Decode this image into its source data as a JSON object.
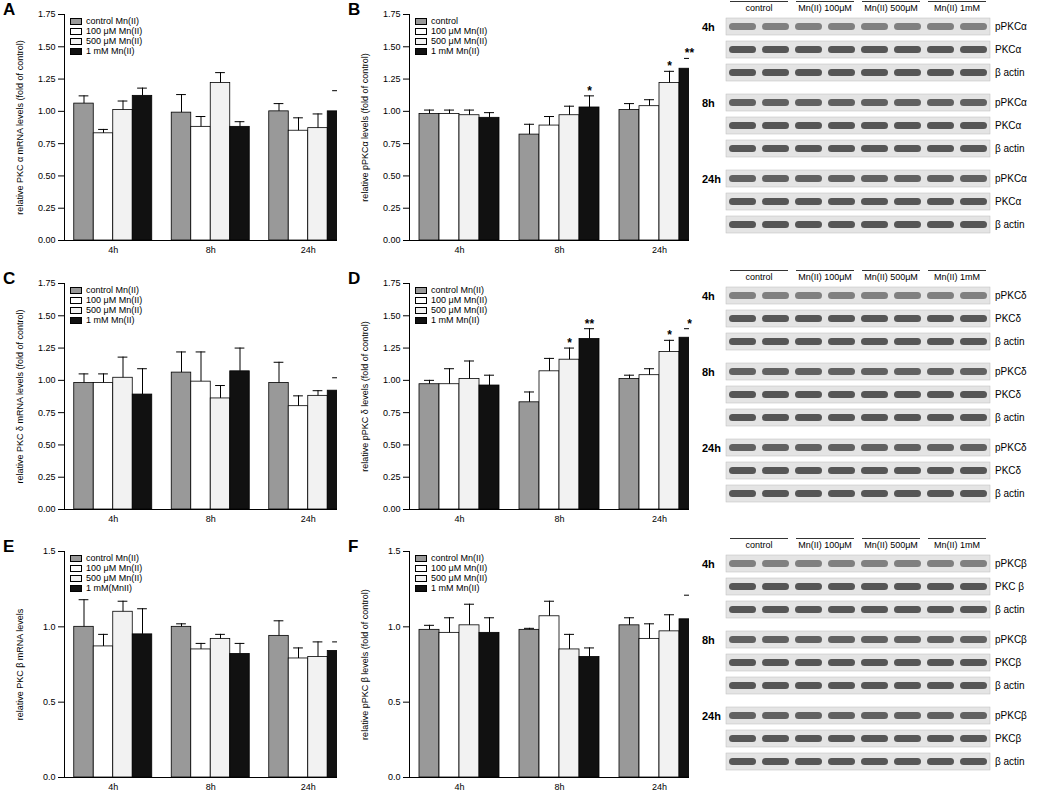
{
  "chart_data": [
    {
      "type": "bar",
      "title": "A",
      "ylabel": "relative PKC α mRNA levels (fold of control)",
      "categories": [
        "4h",
        "8h",
        "24h"
      ],
      "ylim": [
        0,
        1.75
      ],
      "yticks": [
        {
          "value": 0,
          "label": "0.00"
        },
        {
          "value": 0.25,
          "label": "0.25"
        },
        {
          "value": 0.5,
          "label": "0.50"
        },
        {
          "value": 0.75,
          "label": "0.75"
        },
        {
          "value": 1,
          "label": "1.00"
        },
        {
          "value": 1.25,
          "label": "1.25"
        },
        {
          "value": 1.5,
          "label": "1.50"
        },
        {
          "value": 1.75,
          "label": "1.75"
        }
      ],
      "legend": "upper left",
      "series": [
        {
          "name": "control Mn(II)",
          "color": "#999999",
          "values": [
            1.06,
            0.99,
            1.0
          ],
          "errors": [
            0.06,
            0.14,
            0.06
          ]
        },
        {
          "name": "100 μM Mn(II)",
          "color": "#ffffff",
          "values": [
            0.83,
            0.88,
            0.85
          ],
          "errors": [
            0.03,
            0.08,
            0.1
          ]
        },
        {
          "name": "500 μM Mn(II)",
          "color": "#f2f2f2",
          "values": [
            1.01,
            1.22,
            0.87
          ],
          "errors": [
            0.07,
            0.08,
            0.11
          ]
        },
        {
          "name": "1 mM Mn(II)",
          "color": "#111111",
          "values": [
            1.12,
            0.88,
            1.0
          ],
          "errors": [
            0.06,
            0.04,
            0.16
          ]
        }
      ]
    },
    {
      "type": "bar",
      "title": "B",
      "ylabel": "relative pPKCα levels (fold of control)",
      "categories": [
        "4h",
        "8h",
        "24h"
      ],
      "ylim": [
        0,
        1.75
      ],
      "yticks": [
        {
          "value": 0,
          "label": "0.00"
        },
        {
          "value": 0.25,
          "label": "0.25"
        },
        {
          "value": 0.5,
          "label": "0.50"
        },
        {
          "value": 0.75,
          "label": "0.75"
        },
        {
          "value": 1,
          "label": "1.00"
        },
        {
          "value": 1.25,
          "label": "1.25"
        },
        {
          "value": 1.5,
          "label": "1.50"
        },
        {
          "value": 1.75,
          "label": "1.75"
        }
      ],
      "legend": "upper left",
      "series": [
        {
          "name": "control",
          "color": "#999999",
          "values": [
            0.98,
            0.82,
            1.01
          ],
          "errors": [
            0.03,
            0.08,
            0.05
          ]
        },
        {
          "name": "100 μM Mn(II)",
          "color": "#ffffff",
          "values": [
            0.98,
            0.89,
            1.04
          ],
          "errors": [
            0.03,
            0.07,
            0.05
          ]
        },
        {
          "name": "500 μM Mn(II)",
          "color": "#f2f2f2",
          "values": [
            0.97,
            0.97,
            1.22
          ],
          "errors": [
            0.04,
            0.07,
            0.09
          ],
          "significance": [
            null,
            null,
            "*"
          ]
        },
        {
          "name": "1 mM Mn(II)",
          "color": "#111111",
          "values": [
            0.95,
            1.03,
            1.33
          ],
          "errors": [
            0.04,
            0.09,
            0.08
          ],
          "significance": [
            null,
            "*",
            "**"
          ]
        }
      ],
      "blot": {
        "header": [
          "control",
          "Mn(II) 100μM",
          "Mn(II) 500μM",
          "Mn(II) 1mM"
        ],
        "groups": [
          {
            "time": "4h",
            "rows": [
              "pPKCα",
              "PKCα",
              "β actin"
            ]
          },
          {
            "time": "8h",
            "rows": [
              "pPKCα",
              "PKCα",
              "β actin"
            ]
          },
          {
            "time": "24h",
            "rows": [
              "pPKCα",
              "PKCα",
              "β actin"
            ]
          }
        ]
      }
    },
    {
      "type": "bar",
      "title": "C",
      "ylabel": "relative PKC δ mRNA levels (fold of control)",
      "categories": [
        "4h",
        "8h",
        "24h"
      ],
      "ylim": [
        0,
        1.75
      ],
      "yticks": [
        {
          "value": 0,
          "label": "0.00"
        },
        {
          "value": 0.25,
          "label": "0.25"
        },
        {
          "value": 0.5,
          "label": "0.50"
        },
        {
          "value": 0.75,
          "label": "0.75"
        },
        {
          "value": 1,
          "label": "1.00"
        },
        {
          "value": 1.25,
          "label": "1.25"
        },
        {
          "value": 1.5,
          "label": "1.50"
        },
        {
          "value": 1.75,
          "label": "1.75"
        }
      ],
      "legend": "upper left",
      "series": [
        {
          "name": "control Mn(II)",
          "color": "#999999",
          "values": [
            0.98,
            1.06,
            0.98
          ],
          "errors": [
            0.07,
            0.16,
            0.16
          ]
        },
        {
          "name": "100 μM Mn(II)",
          "color": "#ffffff",
          "values": [
            0.98,
            0.99,
            0.8
          ],
          "errors": [
            0.07,
            0.23,
            0.08
          ]
        },
        {
          "name": "500 μM Mn(II)",
          "color": "#f2f2f2",
          "values": [
            1.02,
            0.86,
            0.88
          ],
          "errors": [
            0.16,
            0.1,
            0.04
          ]
        },
        {
          "name": "1 mM Mn(II)",
          "color": "#111111",
          "values": [
            0.89,
            1.07,
            0.92
          ],
          "errors": [
            0.2,
            0.18,
            0.1
          ]
        }
      ]
    },
    {
      "type": "bar",
      "title": "D",
      "ylabel": "relative pPKC δ levels (fold of control)",
      "categories": [
        "4h",
        "8h",
        "24h"
      ],
      "ylim": [
        0,
        1.75
      ],
      "yticks": [
        {
          "value": 0,
          "label": "0.00"
        },
        {
          "value": 0.25,
          "label": "0.25"
        },
        {
          "value": 0.5,
          "label": "0.50"
        },
        {
          "value": 0.75,
          "label": "0.75"
        },
        {
          "value": 1,
          "label": "1.00"
        },
        {
          "value": 1.25,
          "label": "1.25"
        },
        {
          "value": 1.5,
          "label": "1.50"
        },
        {
          "value": 1.75,
          "label": "1.75"
        }
      ],
      "legend": "upper left",
      "series": [
        {
          "name": "control Mn(II)",
          "color": "#999999",
          "values": [
            0.97,
            0.83,
            1.01
          ],
          "errors": [
            0.03,
            0.08,
            0.03
          ]
        },
        {
          "name": "100 μM Mn(II)",
          "color": "#ffffff",
          "values": [
            0.97,
            1.07,
            1.04
          ],
          "errors": [
            0.12,
            0.1,
            0.05
          ]
        },
        {
          "name": "500 μM Mn(II)",
          "color": "#f2f2f2",
          "values": [
            1.01,
            1.16,
            1.22
          ],
          "errors": [
            0.14,
            0.09,
            0.09
          ],
          "significance": [
            null,
            "*",
            "*"
          ]
        },
        {
          "name": "1 mM Mn(II)",
          "color": "#111111",
          "values": [
            0.96,
            1.32,
            1.33
          ],
          "errors": [
            0.08,
            0.08,
            0.07
          ],
          "significance": [
            null,
            "**",
            "*"
          ]
        }
      ],
      "blot": {
        "header": [
          "control",
          "Mn(II) 100μM",
          "Mn(II) 500μM",
          "Mn(II) 1mM"
        ],
        "groups": [
          {
            "time": "4h",
            "rows": [
              "pPKCδ",
              "PKCδ",
              "β actin"
            ]
          },
          {
            "time": "8h",
            "rows": [
              "pPKCδ",
              "PKCδ",
              "β actin"
            ]
          },
          {
            "time": "24h",
            "rows": [
              "pPKCδ",
              "PKCδ",
              "β actin"
            ]
          }
        ]
      }
    },
    {
      "type": "bar",
      "title": "E",
      "ylabel": "relative PKC β mRNA levels",
      "categories": [
        "4h",
        "8h",
        "24h"
      ],
      "ylim": [
        0,
        1.5
      ],
      "yticks": [
        {
          "value": 0,
          "label": "0.0"
        },
        {
          "value": 0.5,
          "label": "0.5"
        },
        {
          "value": 1,
          "label": "1.0"
        },
        {
          "value": 1.5,
          "label": "1.5"
        }
      ],
      "legend": "upper left",
      "series": [
        {
          "name": "control Mn(II)",
          "color": "#999999",
          "values": [
            1.0,
            1.0,
            0.94
          ],
          "errors": [
            0.18,
            0.02,
            0.1
          ]
        },
        {
          "name": "100 μM Mn(II)",
          "color": "#ffffff",
          "values": [
            0.87,
            0.85,
            0.79
          ],
          "errors": [
            0.08,
            0.04,
            0.07
          ]
        },
        {
          "name": "500 μM Mn(II)",
          "color": "#f2f2f2",
          "values": [
            1.1,
            0.92,
            0.8
          ],
          "errors": [
            0.07,
            0.03,
            0.1
          ]
        },
        {
          "name": "1 mM(MnII)",
          "color": "#111111",
          "values": [
            0.95,
            0.82,
            0.84
          ],
          "errors": [
            0.17,
            0.07,
            0.06
          ]
        }
      ]
    },
    {
      "type": "bar",
      "title": "F",
      "ylabel": "relative pPKC β levels (fold of control)",
      "categories": [
        "4h",
        "8h",
        "24h"
      ],
      "ylim": [
        0,
        1.5
      ],
      "yticks": [
        {
          "value": 0,
          "label": "0.0"
        },
        {
          "value": 0.5,
          "label": "0.5"
        },
        {
          "value": 1,
          "label": "1.0"
        },
        {
          "value": 1.5,
          "label": "1.5"
        }
      ],
      "legend": "upper left",
      "series": [
        {
          "name": "control Mn(II)",
          "color": "#999999",
          "values": [
            0.98,
            0.98,
            1.01
          ],
          "errors": [
            0.03,
            0.01,
            0.05
          ]
        },
        {
          "name": "100 μM Mn(II)",
          "color": "#ffffff",
          "values": [
            0.96,
            1.07,
            0.92
          ],
          "errors": [
            0.1,
            0.1,
            0.1
          ]
        },
        {
          "name": "500 μM Mn(II)",
          "color": "#f2f2f2",
          "values": [
            1.01,
            0.85,
            0.97
          ],
          "errors": [
            0.14,
            0.1,
            0.11
          ]
        },
        {
          "name": "1 mM Mn(II)",
          "color": "#111111",
          "values": [
            0.96,
            0.8,
            1.05
          ],
          "errors": [
            0.1,
            0.06,
            0.16
          ]
        }
      ],
      "blot": {
        "header": [
          "control",
          "Mn(II) 100μM",
          "Mn(II) 500μM",
          "Mn(II) 1mM"
        ],
        "groups": [
          {
            "time": "4h",
            "rows": [
              "pPKCβ",
              "PKC β",
              "β actin"
            ]
          },
          {
            "time": "8h",
            "rows": [
              "pPKCβ",
              "PKCβ",
              "β actin"
            ]
          },
          {
            "time": "24h",
            "rows": [
              "pPKCβ",
              "PKCβ",
              "β actin"
            ]
          }
        ]
      }
    }
  ]
}
